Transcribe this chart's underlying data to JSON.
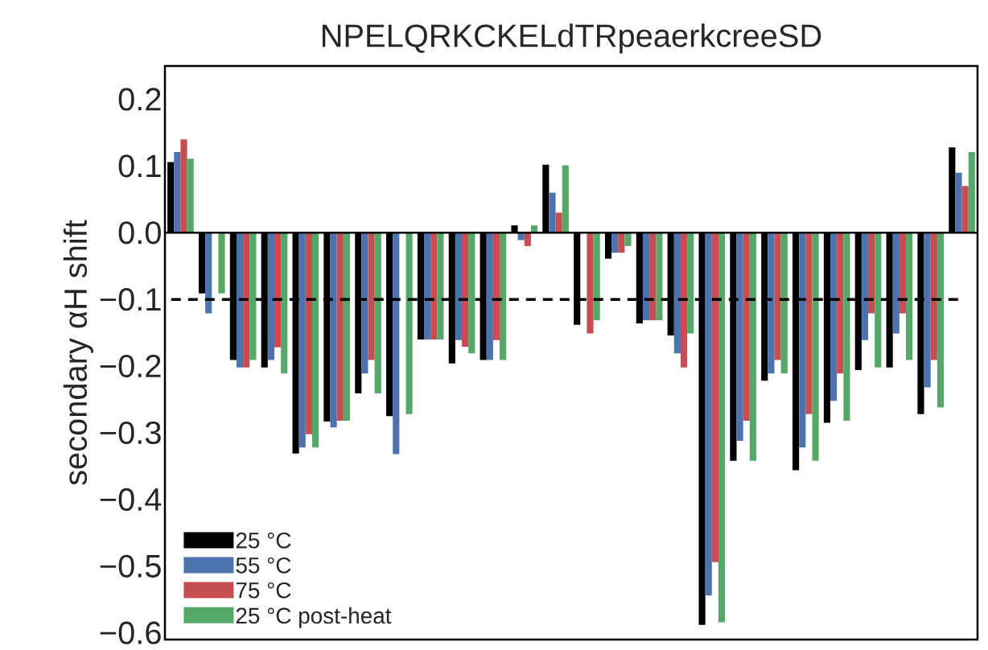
{
  "chart_data": {
    "type": "bar",
    "title": "NPELQRKCKELdTRpeaerkcreeSD",
    "ylabel": "secondary αH shift",
    "categories": [
      null,
      null,
      null,
      null,
      null,
      null,
      null,
      null,
      null,
      null,
      null,
      null,
      null,
      null,
      null,
      null,
      null,
      null,
      null,
      null,
      null,
      null,
      null,
      null,
      null,
      null
    ],
    "series": [
      {
        "name": "25 °C",
        "color": "#000000",
        "values": [
          0.106,
          -0.091,
          -0.191,
          -0.202,
          -0.331,
          -0.283,
          -0.241,
          -0.275,
          -0.16,
          -0.196,
          -0.191,
          0.011,
          0.102,
          -0.138,
          -0.039,
          -0.136,
          -0.154,
          -0.588,
          -0.342,
          -0.222,
          -0.356,
          -0.285,
          -0.206,
          -0.202,
          -0.272,
          0.128
        ]
      },
      {
        "name": "55 °C",
        "color": "#4c72b0",
        "values": [
          0.121,
          -0.121,
          -0.202,
          -0.191,
          -0.322,
          -0.292,
          -0.211,
          -0.332,
          -0.16,
          -0.161,
          -0.191,
          -0.011,
          0.06,
          null,
          -0.03,
          -0.131,
          -0.181,
          -0.544,
          -0.312,
          -0.211,
          -0.322,
          -0.252,
          -0.161,
          -0.151,
          -0.232,
          0.09
        ]
      },
      {
        "name": "75 °C",
        "color": "#c44e52",
        "values": [
          0.14,
          null,
          -0.202,
          -0.172,
          -0.302,
          -0.282,
          -0.191,
          null,
          -0.16,
          -0.171,
          -0.161,
          -0.02,
          0.03,
          -0.151,
          -0.03,
          -0.131,
          -0.202,
          -0.494,
          -0.282,
          -0.191,
          -0.272,
          -0.211,
          -0.121,
          -0.121,
          -0.191,
          0.07
        ]
      },
      {
        "name": "25 °C post-heat",
        "color": "#55a868",
        "values": [
          0.111,
          -0.091,
          -0.191,
          -0.211,
          -0.322,
          -0.282,
          -0.241,
          -0.272,
          -0.16,
          -0.181,
          -0.191,
          0.011,
          0.101,
          -0.131,
          -0.02,
          -0.131,
          -0.151,
          -0.584,
          -0.342,
          -0.211,
          -0.342,
          -0.282,
          -0.202,
          -0.191,
          -0.262,
          0.121
        ]
      }
    ],
    "ylim": [
      -0.61,
      0.25
    ],
    "yticks": [
      {
        "value": 0.2,
        "label": "0.2"
      },
      {
        "value": 0.1,
        "label": "0.1"
      },
      {
        "value": 0,
        "label": "0.0"
      },
      {
        "value": -0.1,
        "label": "−0.1"
      },
      {
        "value": -0.2,
        "label": "−0.2"
      },
      {
        "value": -0.3,
        "label": "−0.3"
      },
      {
        "value": -0.4,
        "label": "−0.4"
      },
      {
        "value": -0.5,
        "label": "−0.5"
      },
      {
        "value": -0.6,
        "label": "−0.6"
      }
    ],
    "ref_lines": [
      {
        "axis": "y",
        "value": -0.1,
        "color": "#000000",
        "line_style": "dashed"
      }
    ],
    "legend": "bottom left",
    "grid": false
  }
}
